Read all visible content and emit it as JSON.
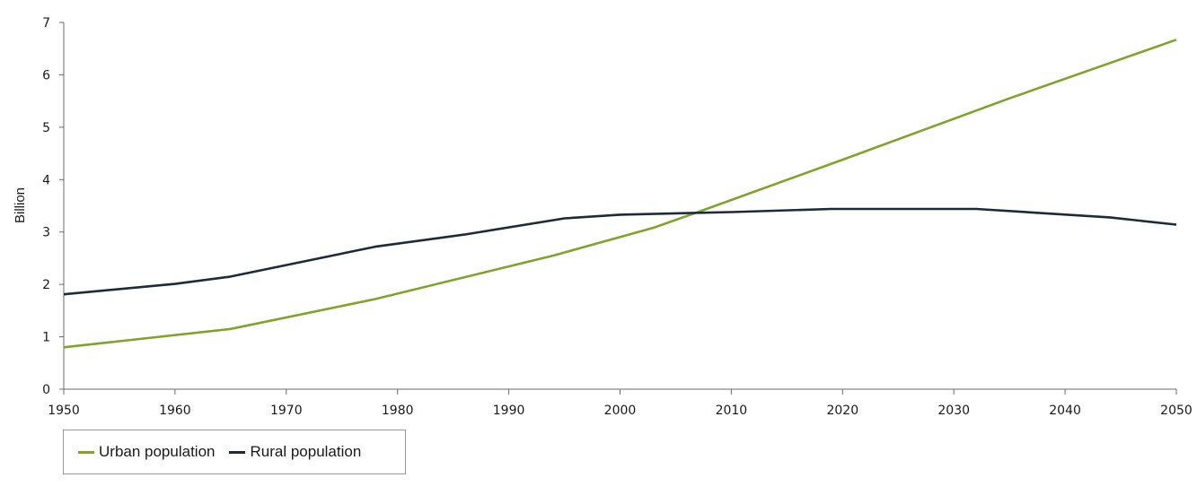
{
  "chart_data": {
    "type": "line",
    "ylabel": "Billion",
    "xlabel": "",
    "xlim": [
      1950,
      2050
    ],
    "ylim": [
      0,
      7
    ],
    "x_ticks": [
      "1950",
      "1960",
      "1970",
      "1980",
      "1990",
      "2000",
      "2010",
      "2020",
      "2030",
      "2040",
      "2050"
    ],
    "y_ticks": [
      "0",
      "1",
      "2",
      "3",
      "4",
      "5",
      "6",
      "7"
    ],
    "legend_position": "bottom-left",
    "grid": false,
    "series": [
      {
        "name": "Urban population",
        "color": "#7fa42a",
        "points": [
          [
            1950,
            0.8
          ],
          [
            1965,
            1.15
          ],
          [
            1978,
            1.72
          ],
          [
            1994,
            2.55
          ],
          [
            2003,
            3.08
          ],
          [
            2007,
            3.38
          ],
          [
            2020,
            4.38
          ],
          [
            2035,
            5.55
          ],
          [
            2050,
            6.67
          ]
        ]
      },
      {
        "name": "Rural population",
        "color": "#1d2b38",
        "points": [
          [
            1950,
            1.81
          ],
          [
            1960,
            2.01
          ],
          [
            1965,
            2.15
          ],
          [
            1978,
            2.72
          ],
          [
            1986,
            2.95
          ],
          [
            1995,
            3.26
          ],
          [
            2000,
            3.33
          ],
          [
            2010,
            3.38
          ],
          [
            2019,
            3.44
          ],
          [
            2032,
            3.44
          ],
          [
            2044,
            3.28
          ],
          [
            2050,
            3.14
          ]
        ]
      }
    ]
  },
  "legend": {
    "urban_label": "Urban population",
    "rural_label": "Rural population"
  }
}
